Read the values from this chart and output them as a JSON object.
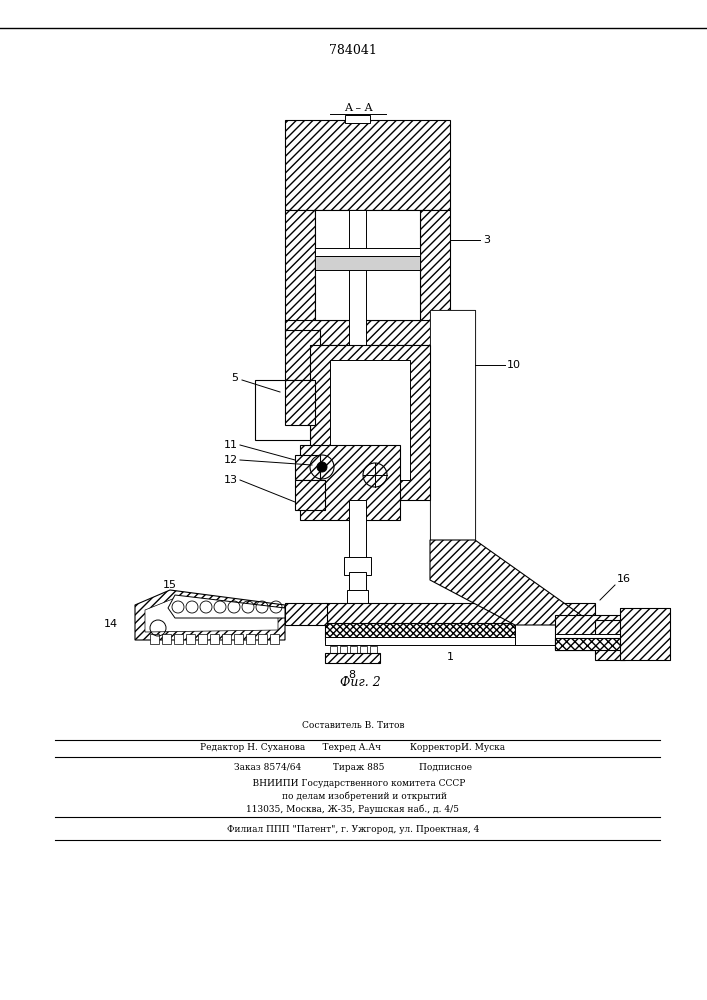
{
  "title_number": "784041",
  "fig_label": "Фиг. 2",
  "section_label": "A – A",
  "background_color": "#ffffff",
  "line_color": "#000000",
  "footer_lines": [
    "Составитель В. Титов",
    "Редактор Н. Суханова      Техред А.Ач          КорректорИ. Муска",
    "Заказ 8574/64           Тираж 885            Подписное",
    "    ВНИИПИ Государственного комитета СССР",
    "        по делам изобретений и открытий",
    "113035, Москва, Ж-35, Раушская наб., д. 4/5",
    "Филиал ППП \"Патент\", г. Ужгород, ул. Проектная, 4"
  ]
}
